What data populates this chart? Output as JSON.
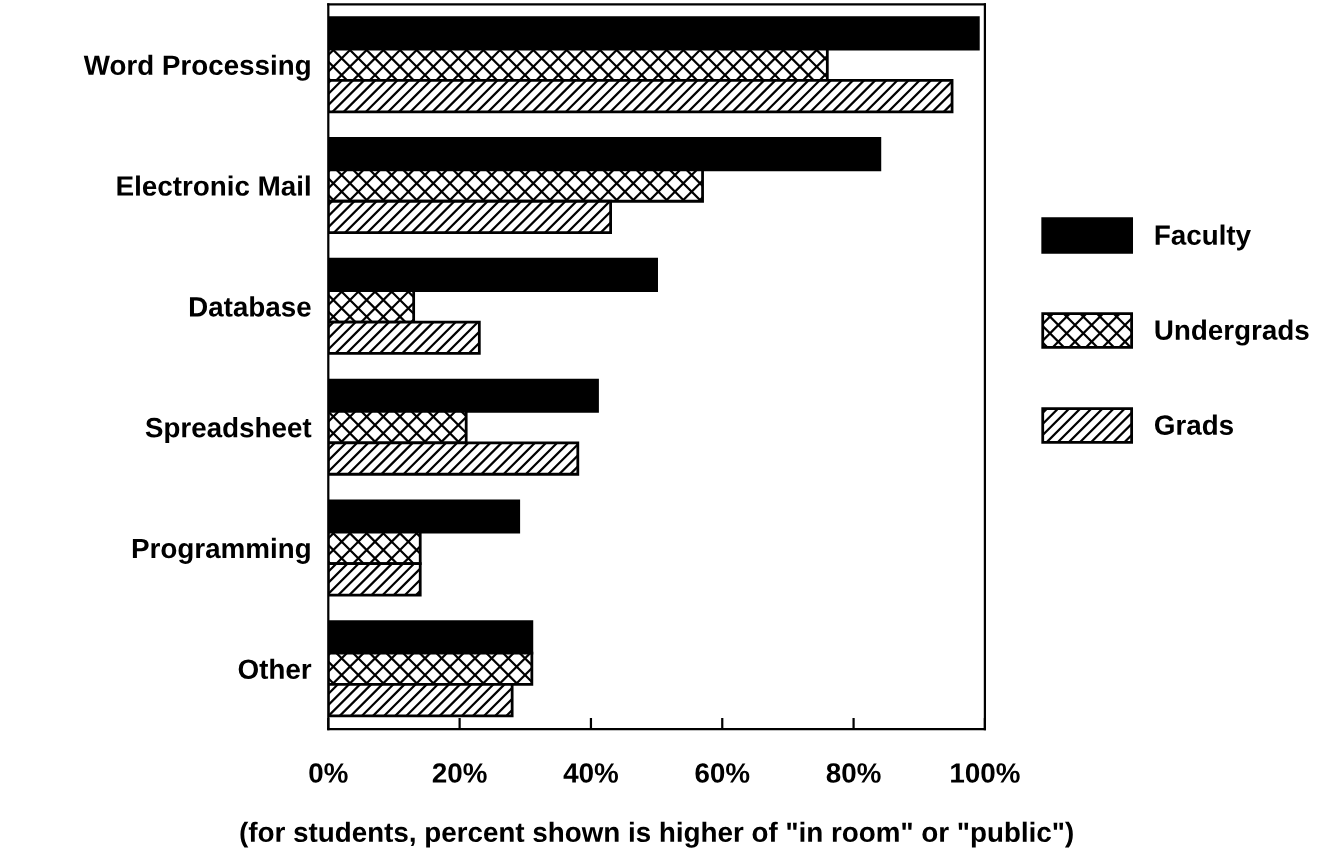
{
  "chart_data": {
    "type": "bar",
    "orientation": "horizontal",
    "categories": [
      "Word Processing",
      "Electronic Mail",
      "Database",
      "Spreadsheet",
      "Programming",
      "Other"
    ],
    "series": [
      {
        "name": "Faculty",
        "color": "#000000",
        "values": [
          99,
          84,
          50,
          41,
          29,
          31
        ]
      },
      {
        "name": "Undergrads",
        "color": "#000000",
        "values": [
          76,
          57,
          13,
          21,
          14,
          31
        ]
      },
      {
        "name": "Grads",
        "color": "#000000",
        "values": [
          95,
          43,
          23,
          38,
          14,
          28
        ]
      }
    ],
    "xlim": [
      0,
      100
    ],
    "xticks": [
      {
        "value": 0,
        "label": "0%"
      },
      {
        "value": 20,
        "label": "20%"
      },
      {
        "value": 40,
        "label": "40%"
      },
      {
        "value": 60,
        "label": "60%"
      },
      {
        "value": 80,
        "label": "80%"
      },
      {
        "value": 100,
        "label": "100%"
      }
    ],
    "xlabel": "(for students, percent shown is higher of \"in room\" or \"public\")",
    "grid": false,
    "legend": "right"
  }
}
